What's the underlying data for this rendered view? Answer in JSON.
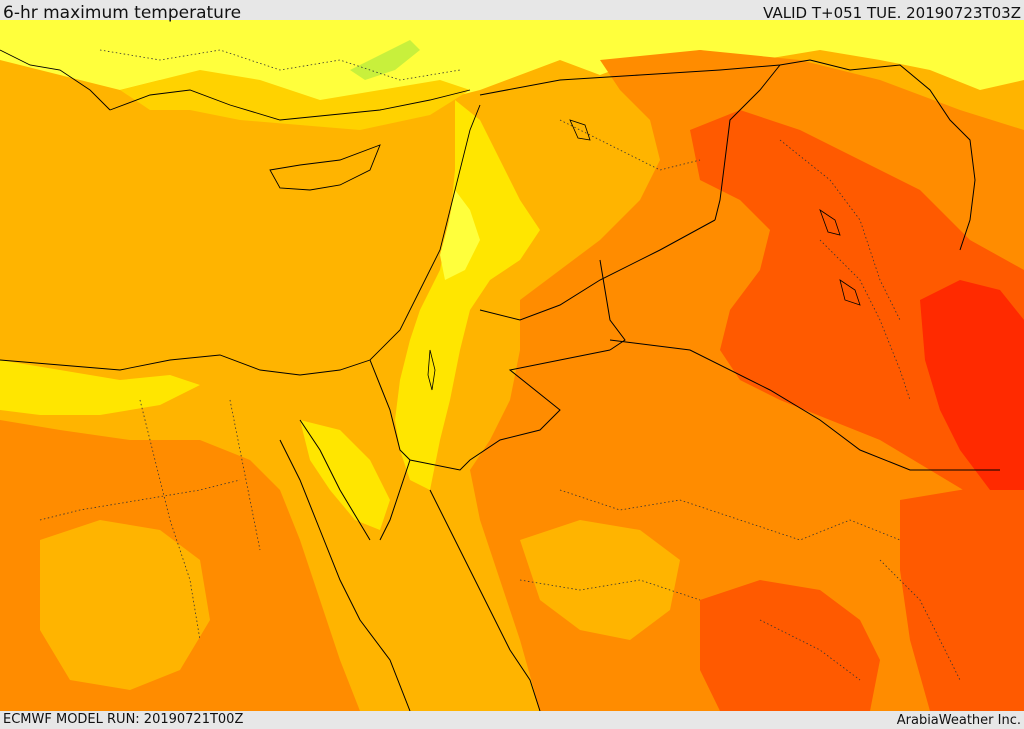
{
  "header": {
    "product_title": "6-hr maximum temperature",
    "valid_time": "VALID T+051 TUE. 20190723T03Z"
  },
  "footer": {
    "model_run": "ECMWF MODEL RUN: 20190721T00Z",
    "credit": "ArabiaWeather Inc."
  },
  "palette": {
    "band_lemon": "#ffff3c",
    "band_yellow": "#ffe600",
    "band_gold": "#ffd200",
    "band_amber": "#ffb400",
    "band_orange": "#ff8c00",
    "band_red_orange": "#ff5a00",
    "band_red": "#ff2a00",
    "band_green_hint": "#c8f03c",
    "border_color": "#000000"
  }
}
